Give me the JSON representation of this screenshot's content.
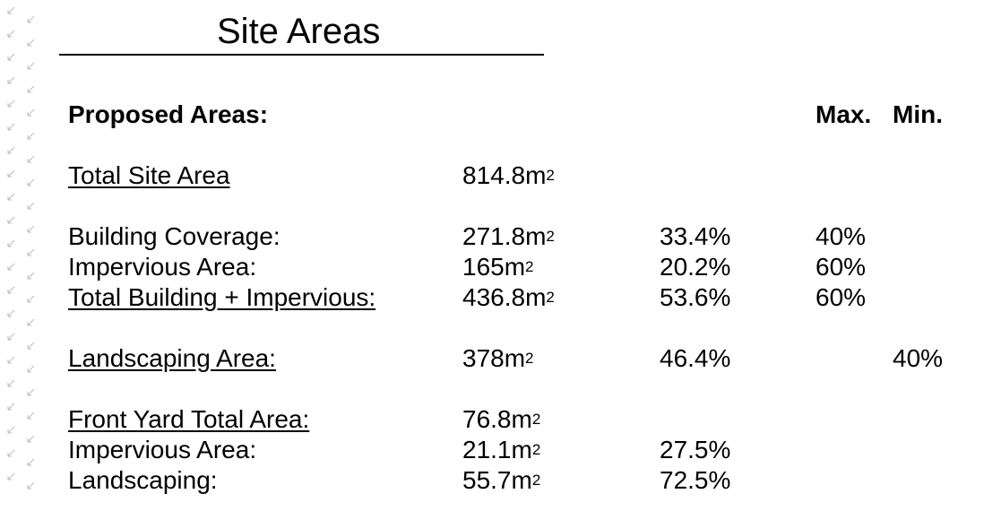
{
  "title": "Site Areas",
  "headers": {
    "proposed": "Proposed Areas:",
    "max": "Max.",
    "min": "Min."
  },
  "unit": "m",
  "unit_exp": "2",
  "rows": {
    "total_site": {
      "label": "Total Site Area",
      "area": "814.8"
    },
    "building_coverage": {
      "label": "Building Coverage:",
      "area": "271.8",
      "pct": "33.4%",
      "max": "40%"
    },
    "impervious": {
      "label": "Impervious Area:",
      "area": "165",
      "pct": "20.2%",
      "max": "60%"
    },
    "total_building_impervious": {
      "label": "Total Building + Impervious:",
      "area": "436.8",
      "pct": "53.6%",
      "max": "60%"
    },
    "landscaping_area": {
      "label": "Landscaping Area:",
      "area": "378",
      "pct": "46.4%",
      "min": "40%"
    },
    "front_yard_total": {
      "label": "Front Yard Total Area:",
      "area": "76.8"
    },
    "front_impervious": {
      "label": "Impervious Area:",
      "area": "21.1",
      "pct": "27.5%"
    },
    "front_landscaping": {
      "label": "Landscaping:",
      "area": "55.7",
      "pct": "72.5%"
    }
  },
  "decor": {
    "margin_mark_color": "#bbbbbb",
    "margin_mark_icon": "arrow-mark-icon"
  }
}
